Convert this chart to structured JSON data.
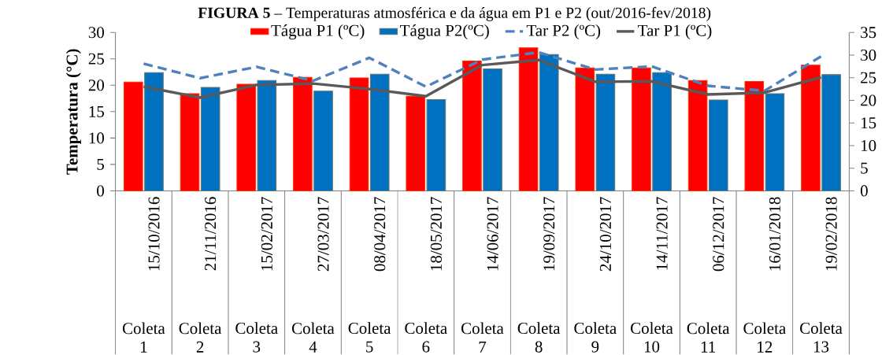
{
  "chart_data": {
    "type": "bar",
    "title": "**FIGURA 5** – Temperaturas atmosférica e da água em P1 e P2 (out/2016-fev/2018)",
    "ylabel": "Temperatura (°C)",
    "categories": [
      "15/10/2016",
      "21/11/2016",
      "15/02/2017",
      "27/03/2017",
      "08/04/2017",
      "18/05/2017",
      "14/06/2017",
      "19/09/2017",
      "24/10/2017",
      "14/11/2017",
      "06/12/2017",
      "16/01/2018",
      "19/02/2018"
    ],
    "annotations": [
      "Coleta 1",
      "Coleta 2",
      "Coleta 3",
      "Coleta 4",
      "Coleta 5",
      "Coleta 6",
      "Coleta 7",
      "Coleta 8",
      "Coleta 9",
      "Coleta 10",
      "Coleta 11",
      "Coleta 12",
      "Coleta 13"
    ],
    "series": [
      {
        "name": "Tágua P1 (ºC)",
        "color": "#ff0000",
        "values": [
          20.6,
          18.4,
          20.2,
          21.5,
          21.4,
          17.9,
          24.6,
          27.1,
          23.3,
          23.3,
          20.9,
          20.7,
          23.8
        ]
      },
      {
        "name": "Tágua P2(ºC)",
        "color": "#0070c0",
        "values": [
          22.4,
          19.6,
          20.9,
          18.9,
          22.1,
          17.3,
          23.1,
          25.8,
          22.1,
          22.4,
          17.2,
          18.4,
          22.0
        ]
      },
      {
        "name": "Tar P2 (ºC)",
        "type": "line",
        "axis": "y2",
        "line_style": "dashed",
        "color": "#4f81bd",
        "values": [
          28.1,
          24.9,
          27.4,
          24.3,
          29.4,
          23.0,
          29.0,
          30.6,
          26.8,
          27.5,
          23.2,
          22.1,
          29.7
        ]
      },
      {
        "name": "Tar P1 (ºC)",
        "type": "line",
        "axis": "y2",
        "line_style": "solid",
        "color": "#595959",
        "values": [
          23.0,
          20.6,
          23.4,
          23.7,
          22.5,
          20.9,
          27.8,
          28.9,
          24.1,
          24.2,
          21.3,
          21.7,
          25.1
        ]
      }
    ],
    "ylim": [
      0,
      30
    ],
    "yticks": [
      0,
      5,
      10,
      15,
      20,
      25,
      30
    ],
    "y2lim": [
      0,
      35
    ],
    "y2ticks": [
      0,
      5,
      10,
      15,
      20,
      25,
      30,
      35
    ],
    "legend": "top"
  }
}
